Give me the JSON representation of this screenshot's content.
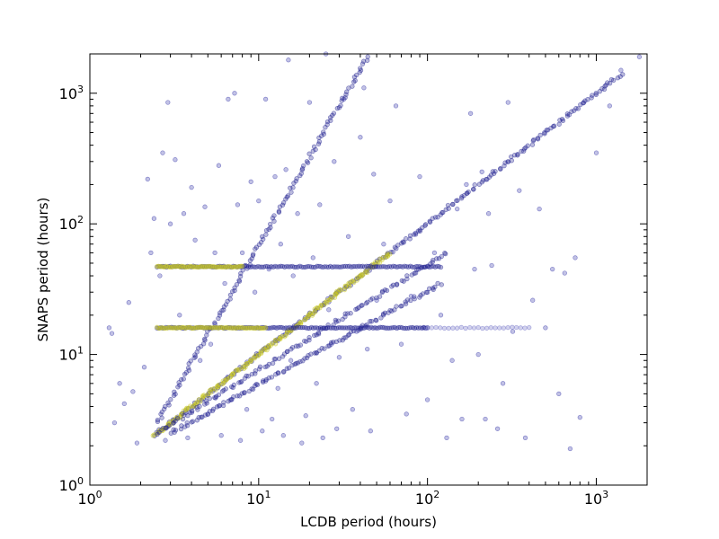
{
  "chart_data": {
    "type": "scatter",
    "title": "",
    "xlabel": "LCDB period (hours)",
    "ylabel": "SNAPS period (hours)",
    "xscale": "log",
    "yscale": "log",
    "xlim": [
      1,
      2000
    ],
    "ylim": [
      1,
      2000
    ],
    "grid": false,
    "x_ticks": [
      {
        "value": 1,
        "base": "10",
        "exp": "0"
      },
      {
        "value": 10,
        "base": "10",
        "exp": "1"
      },
      {
        "value": 100,
        "base": "10",
        "exp": "2"
      },
      {
        "value": 1000,
        "base": "10",
        "exp": "3"
      }
    ],
    "y_ticks": [
      {
        "value": 1,
        "base": "10",
        "exp": "0"
      },
      {
        "value": 10,
        "base": "10",
        "exp": "1"
      },
      {
        "value": 100,
        "base": "10",
        "exp": "2"
      },
      {
        "value": 1000,
        "base": "10",
        "exp": "3"
      }
    ],
    "marker_colors": {
      "dense": "#1f1f8f",
      "yellow": "#c8c81a",
      "scatter": "#6b6bc4"
    },
    "series": [
      {
        "style": "scatter",
        "color": "#3535a8",
        "points": [
          [
            1.3,
            16
          ],
          [
            1.35,
            14.5
          ],
          [
            1.4,
            3
          ],
          [
            1.5,
            6
          ],
          [
            1.6,
            4.2
          ],
          [
            1.7,
            25
          ],
          [
            1.8,
            5.2
          ],
          [
            1.9,
            2.1
          ],
          [
            2.1,
            8
          ],
          [
            2.2,
            220
          ],
          [
            2.3,
            60
          ],
          [
            2.4,
            110
          ],
          [
            2.6,
            40
          ],
          [
            2.7,
            350
          ],
          [
            2.8,
            2.2
          ],
          [
            2.9,
            850
          ],
          [
            3.0,
            100
          ],
          [
            3.2,
            310
          ],
          [
            3.4,
            20
          ],
          [
            3.6,
            120
          ],
          [
            3.8,
            2.3
          ],
          [
            4.0,
            190
          ],
          [
            4.2,
            75
          ],
          [
            4.5,
            9
          ],
          [
            4.8,
            135
          ],
          [
            5.0,
            3.5
          ],
          [
            5.2,
            12
          ],
          [
            5.5,
            60
          ],
          [
            5.8,
            280
          ],
          [
            6.0,
            2.4
          ],
          [
            6.3,
            35
          ],
          [
            6.6,
            900
          ],
          [
            6.9,
            4.5
          ],
          [
            7.2,
            1000
          ],
          [
            7.5,
            140
          ],
          [
            7.8,
            2.2
          ],
          [
            8.0,
            60
          ],
          [
            8.5,
            3.8
          ],
          [
            9.0,
            210
          ],
          [
            9.5,
            30
          ],
          [
            10,
            150
          ],
          [
            10.5,
            2.6
          ],
          [
            11,
            900
          ],
          [
            11.5,
            45
          ],
          [
            12,
            3.2
          ],
          [
            12.5,
            230
          ],
          [
            13,
            5.5
          ],
          [
            13.5,
            70
          ],
          [
            14,
            2.4
          ],
          [
            14.5,
            260
          ],
          [
            15,
            1800
          ],
          [
            15.5,
            9
          ],
          [
            16,
            40
          ],
          [
            17,
            120
          ],
          [
            18,
            2.1
          ],
          [
            19,
            3.4
          ],
          [
            20,
            850
          ],
          [
            21,
            55
          ],
          [
            22,
            6
          ],
          [
            23,
            140
          ],
          [
            24,
            2.3
          ],
          [
            25,
            2000
          ],
          [
            26,
            22
          ],
          [
            27,
            12
          ],
          [
            28,
            300
          ],
          [
            29,
            2.7
          ],
          [
            30,
            9.5
          ],
          [
            32,
            900
          ],
          [
            34,
            80
          ],
          [
            36,
            3.8
          ],
          [
            38,
            15
          ],
          [
            40,
            460
          ],
          [
            42,
            1100
          ],
          [
            44,
            11
          ],
          [
            46,
            2.6
          ],
          [
            48,
            240
          ],
          [
            50,
            26
          ],
          [
            55,
            70
          ],
          [
            60,
            150
          ],
          [
            65,
            800
          ],
          [
            70,
            12
          ],
          [
            75,
            3.5
          ],
          [
            80,
            28
          ],
          [
            85,
            85
          ],
          [
            90,
            230
          ],
          [
            95,
            16
          ],
          [
            100,
            4.5
          ],
          [
            110,
            60
          ],
          [
            120,
            20
          ],
          [
            130,
            2.3
          ],
          [
            140,
            9
          ],
          [
            150,
            130
          ],
          [
            160,
            3.2
          ],
          [
            170,
            200
          ],
          [
            180,
            700
          ],
          [
            190,
            45
          ],
          [
            200,
            10
          ],
          [
            210,
            250
          ],
          [
            220,
            3.2
          ],
          [
            230,
            120
          ],
          [
            240,
            48
          ],
          [
            260,
            2.7
          ],
          [
            280,
            6
          ],
          [
            300,
            850
          ],
          [
            320,
            15
          ],
          [
            350,
            180
          ],
          [
            380,
            2.3
          ],
          [
            420,
            26
          ],
          [
            460,
            130
          ],
          [
            500,
            16
          ],
          [
            550,
            45
          ],
          [
            600,
            5
          ],
          [
            650,
            42
          ],
          [
            700,
            1.9
          ],
          [
            750,
            55
          ],
          [
            800,
            3.3
          ],
          [
            1000,
            350
          ],
          [
            1200,
            800
          ],
          [
            1400,
            1500
          ],
          [
            1800,
            1900
          ]
        ]
      },
      {
        "style": "line-dense",
        "color": "#1f1f8f",
        "x": [
          2.4,
          1400
        ],
        "y": [
          2.4,
          1400
        ],
        "count": 230
      },
      {
        "style": "line-dense",
        "color": "#c8c81a",
        "x": [
          2.4,
          60
        ],
        "y": [
          2.4,
          60
        ],
        "count": 180
      },
      {
        "style": "line-dense",
        "color": "#1f1f8f",
        "x": [
          2.5,
          45
        ],
        "y": [
          3.0,
          2000
        ],
        "count": 140
      },
      {
        "style": "line-dense",
        "color": "#1f1f8f",
        "x": [
          2.5,
          130
        ],
        "y": [
          2.5,
          60
        ],
        "count": 120
      },
      {
        "style": "line-dense",
        "color": "#1f1f8f",
        "x": [
          3.0,
          120
        ],
        "y": [
          2.5,
          35
        ],
        "count": 120
      },
      {
        "style": "hline-dense",
        "color": "#1f1f8f",
        "y": 47,
        "x": [
          2.5,
          120
        ],
        "count": 150
      },
      {
        "style": "hline-dense",
        "color": "#c8c81a",
        "y": 47,
        "x": [
          2.5,
          8
        ],
        "count": 60
      },
      {
        "style": "hline-dense",
        "color": "#1f1f8f",
        "y": 16,
        "x": [
          2.5,
          100
        ],
        "count": 150
      },
      {
        "style": "hline-dense",
        "color": "#c8c81a",
        "y": 16,
        "x": [
          2.5,
          11
        ],
        "count": 70
      },
      {
        "style": "hline-dense",
        "color": "#6b6bc4",
        "y": 16,
        "x": [
          100,
          400
        ],
        "count": 25
      }
    ]
  }
}
